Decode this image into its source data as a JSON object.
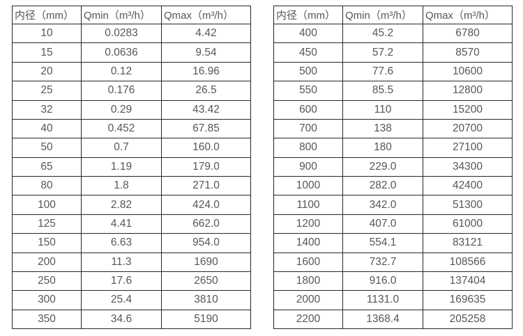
{
  "colors": {
    "background": "#ffffff",
    "border": "#262626",
    "text": "#56565a"
  },
  "tables": [
    {
      "name": "small-diameter-flow-table",
      "headers": [
        "内径（mm）",
        "Qmin（m³/h）",
        "Qmax（m³/h）"
      ],
      "rows": [
        [
          "10",
          "0.0283",
          "4.42"
        ],
        [
          "15",
          "0.0636",
          "9.54"
        ],
        [
          "20",
          "0.12",
          "16.96"
        ],
        [
          "25",
          "0.176",
          "26.5"
        ],
        [
          "32",
          "0.29",
          "43.42"
        ],
        [
          "40",
          "0.452",
          "67.85"
        ],
        [
          "50",
          "0.7",
          "160.0"
        ],
        [
          "65",
          "1.19",
          "179.0"
        ],
        [
          "80",
          "1.8",
          "271.0"
        ],
        [
          "100",
          "2.82",
          "424.0"
        ],
        [
          "125",
          "4.41",
          "662.0"
        ],
        [
          "150",
          "6.63",
          "954.0"
        ],
        [
          "200",
          "11.3",
          "1690"
        ],
        [
          "250",
          "17.6",
          "2650"
        ],
        [
          "300",
          "25.4",
          "3810"
        ],
        [
          "350",
          "34.6",
          "5190"
        ]
      ]
    },
    {
      "name": "large-diameter-flow-table",
      "headers": [
        "内径（mm）",
        "Qmin（m³/h）",
        "Qmax（m³/h）"
      ],
      "rows": [
        [
          "400",
          "45.2",
          "6780"
        ],
        [
          "450",
          "57.2",
          "8570"
        ],
        [
          "500",
          "77.6",
          "10600"
        ],
        [
          "550",
          "85.5",
          "12800"
        ],
        [
          "600",
          "110",
          "15200"
        ],
        [
          "700",
          "138",
          "20700"
        ],
        [
          "800",
          "180",
          "27100"
        ],
        [
          "900",
          "229.0",
          "34300"
        ],
        [
          "1000",
          "282.0",
          "42400"
        ],
        [
          "1100",
          "342.0",
          "51300"
        ],
        [
          "1200",
          "407.0",
          "61000"
        ],
        [
          "1400",
          "554.1",
          "83121"
        ],
        [
          "1600",
          "732.7",
          "108566"
        ],
        [
          "1800",
          "916.0",
          "137404"
        ],
        [
          "2000",
          "1131.0",
          "169635"
        ],
        [
          "2200",
          "1368.4",
          "205258"
        ]
      ]
    }
  ]
}
